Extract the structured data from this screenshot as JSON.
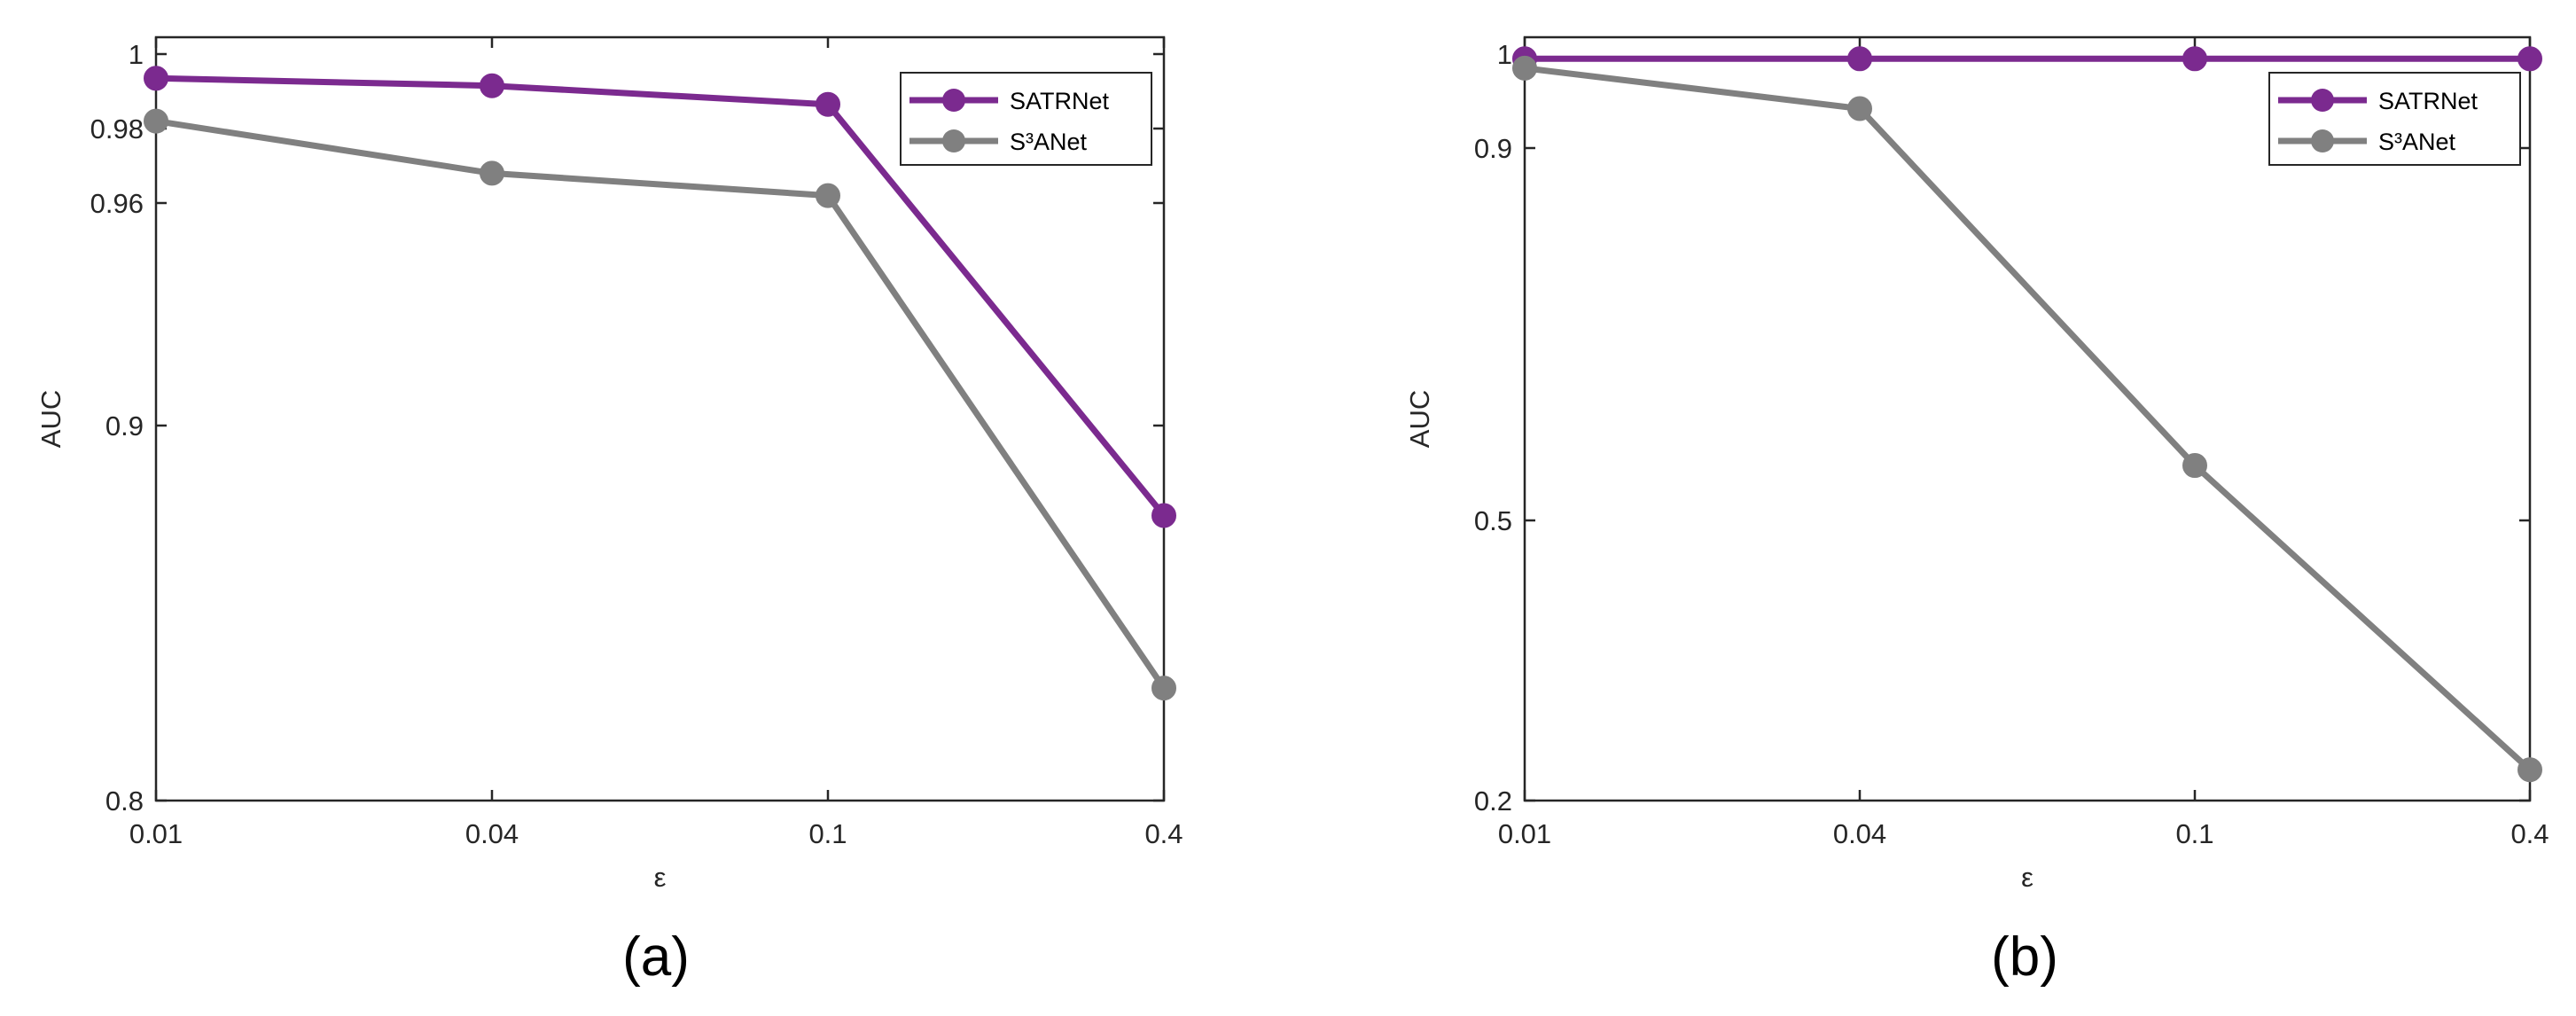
{
  "colors": {
    "SATRNet": "#7b2a8f",
    "S³ANet": "#808080"
  },
  "chart_data": [
    {
      "panel": "(a)",
      "type": "line",
      "xlabel": "ε",
      "ylabel": "AUC",
      "categories": [
        "0.01",
        "0.04",
        "0.1",
        "0.4"
      ],
      "yticks": [
        "0.8",
        "0.9",
        "0.96",
        "0.98",
        "1"
      ],
      "ylim": [
        0.8,
        1
      ],
      "yscale": "nonlinear",
      "grid": false,
      "legend": "top-right",
      "series": [
        {
          "name": "SATRNet",
          "values": [
            0.9935,
            0.9915,
            0.9865,
            0.876
          ]
        },
        {
          "name": "S³ANet",
          "values": [
            0.982,
            0.968,
            0.962,
            0.83
          ]
        }
      ]
    },
    {
      "panel": "(b)",
      "type": "line",
      "xlabel": "ε",
      "ylabel": "AUC",
      "categories": [
        "0.01",
        "0.04",
        "0.1",
        "0.4"
      ],
      "yticks": [
        "0.2",
        "0.5",
        "0.9",
        "1"
      ],
      "ylim": [
        0.2,
        1
      ],
      "yscale": "nonlinear",
      "grid": false,
      "legend": "top-right",
      "series": [
        {
          "name": "SATRNet",
          "values": [
            0.995,
            0.995,
            0.995,
            0.995
          ]
        },
        {
          "name": "S³ANet",
          "values": [
            0.985,
            0.942,
            0.559,
            0.233
          ]
        }
      ]
    }
  ]
}
